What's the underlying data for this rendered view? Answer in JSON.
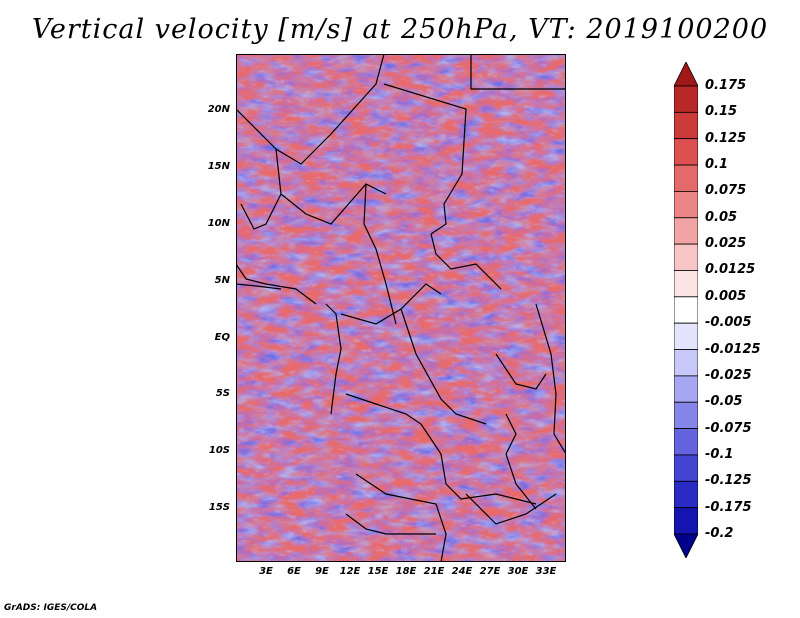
{
  "title": "Vertical velocity [m/s] at 250hPa, VT: 2019100200",
  "footer": "GrADS: IGES/COLA",
  "latitude_labels": [
    "20N",
    "15N",
    "10N",
    "5N",
    "EQ",
    "5S",
    "10S",
    "15S"
  ],
  "longitude_labels": [
    "3E",
    "6E",
    "9E",
    "12E",
    "15E",
    "18E",
    "21E",
    "24E",
    "27E",
    "30E",
    "33E"
  ],
  "colorbar": {
    "levels": [
      "0.175",
      "0.15",
      "0.125",
      "0.1",
      "0.075",
      "0.05",
      "0.025",
      "0.0125",
      "0.005",
      "-0.005",
      "-0.0125",
      "-0.025",
      "-0.05",
      "-0.075",
      "-0.1",
      "-0.125",
      "-0.175",
      "-0.2"
    ],
    "colors": [
      "#a01818",
      "#b82828",
      "#cc3a3a",
      "#dc5050",
      "#e46a6a",
      "#ec8686",
      "#f2a4a4",
      "#f8c6c6",
      "#fde4e4",
      "#ffffff",
      "#e4e4fe",
      "#c8c8fa",
      "#a6a6f2",
      "#8686ea",
      "#6464de",
      "#4444d2",
      "#2a2ac4",
      "#1414b0",
      "#00008c"
    ]
  },
  "colors": {
    "positive": "#e05050",
    "negative": "#5050e0",
    "border": "#000000"
  }
}
